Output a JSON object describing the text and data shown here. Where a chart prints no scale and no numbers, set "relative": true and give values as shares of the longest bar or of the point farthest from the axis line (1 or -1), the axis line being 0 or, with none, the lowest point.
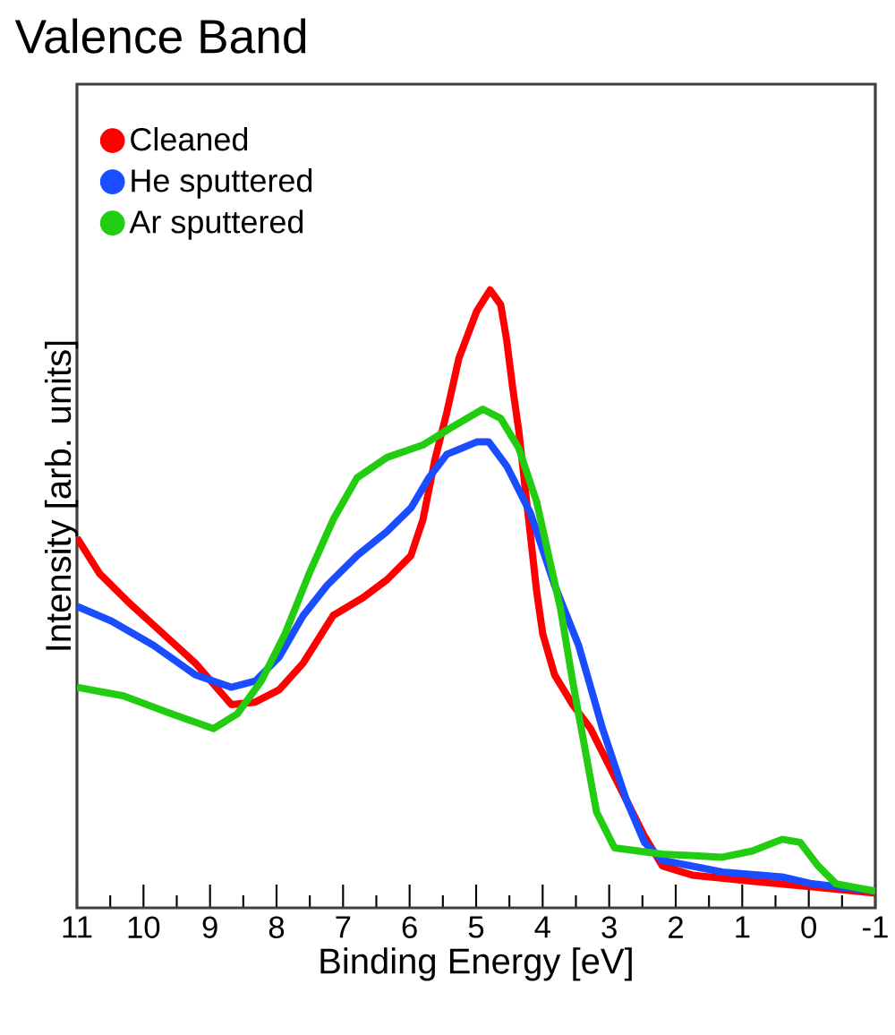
{
  "chart_data": {
    "type": "line",
    "title": "Valence Band",
    "xlabel": "Binding Energy [eV]",
    "ylabel": "Intensity [arb. units]",
    "relative": true,
    "xlim": [
      11,
      -1
    ],
    "xticks": [
      11,
      10,
      9,
      8,
      7,
      6,
      5,
      4,
      3,
      2,
      1,
      0,
      -1
    ],
    "legend": "top left",
    "grid": false,
    "series": [
      {
        "name": "Cleaned",
        "color": "#ff0000",
        "x": [
          11.0,
          10.66,
          10.21,
          9.76,
          9.22,
          8.68,
          8.32,
          7.96,
          7.6,
          7.15,
          6.7,
          6.34,
          5.98,
          5.8,
          5.62,
          5.44,
          5.26,
          4.99,
          4.79,
          4.63,
          4.54,
          4.45,
          4.36,
          4.27,
          4.18,
          4.09,
          4.0,
          3.82,
          3.55,
          3.28,
          3.01,
          2.74,
          2.47,
          2.2,
          1.75,
          0.85,
          -0.05,
          -1.0
        ],
        "values": [
          0.599,
          0.541,
          0.493,
          0.449,
          0.396,
          0.329,
          0.333,
          0.353,
          0.396,
          0.473,
          0.502,
          0.531,
          0.57,
          0.628,
          0.725,
          0.802,
          0.889,
          0.966,
          1.0,
          0.976,
          0.918,
          0.841,
          0.773,
          0.686,
          0.599,
          0.512,
          0.444,
          0.377,
          0.329,
          0.29,
          0.232,
          0.174,
          0.116,
          0.068,
          0.053,
          0.043,
          0.034,
          0.024
        ]
      },
      {
        "name": "He sputtered",
        "color": "#1a4dff",
        "x": [
          11.0,
          10.48,
          9.85,
          9.22,
          8.68,
          8.32,
          7.96,
          7.6,
          7.24,
          6.79,
          6.34,
          5.98,
          5.71,
          5.44,
          4.99,
          4.81,
          4.54,
          4.18,
          3.82,
          3.46,
          3.1,
          2.74,
          2.47,
          2.2,
          1.3,
          0.4,
          -0.05,
          -1.0
        ],
        "values": [
          0.488,
          0.464,
          0.425,
          0.377,
          0.357,
          0.367,
          0.406,
          0.473,
          0.522,
          0.57,
          0.609,
          0.647,
          0.696,
          0.734,
          0.754,
          0.754,
          0.715,
          0.638,
          0.522,
          0.425,
          0.29,
          0.174,
          0.106,
          0.077,
          0.058,
          0.05,
          0.039,
          0.027
        ]
      },
      {
        "name": "Ar sputtered",
        "color": "#22cc11",
        "x": [
          11.0,
          10.3,
          9.58,
          8.95,
          8.59,
          8.23,
          7.87,
          7.51,
          7.15,
          6.79,
          6.34,
          5.8,
          5.44,
          4.9,
          4.63,
          4.36,
          4.09,
          3.91,
          3.73,
          3.55,
          3.37,
          3.19,
          2.92,
          2.2,
          1.3,
          0.85,
          0.4,
          0.13,
          -0.14,
          -0.41,
          -1.0
        ],
        "values": [
          0.357,
          0.343,
          0.314,
          0.29,
          0.314,
          0.367,
          0.444,
          0.541,
          0.628,
          0.696,
          0.729,
          0.749,
          0.773,
          0.807,
          0.792,
          0.744,
          0.657,
          0.57,
          0.483,
          0.367,
          0.261,
          0.155,
          0.097,
          0.087,
          0.082,
          0.092,
          0.111,
          0.106,
          0.068,
          0.039,
          0.027
        ]
      }
    ]
  }
}
